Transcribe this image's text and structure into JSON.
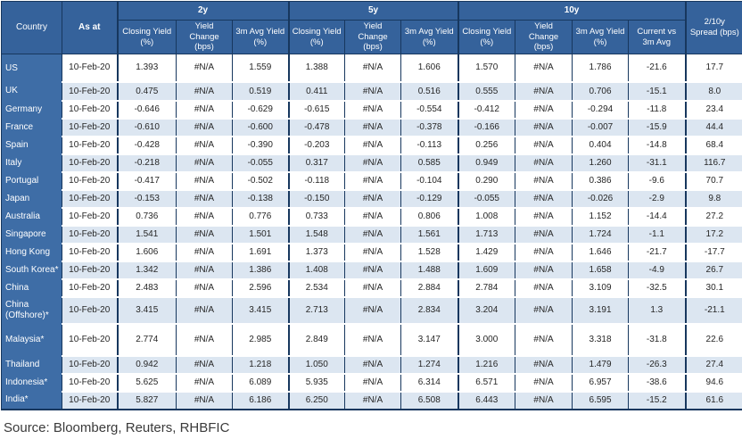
{
  "ui": {
    "header": {
      "country": "Country",
      "as_at": "As at",
      "groups": [
        "2y",
        "5y",
        "10y"
      ],
      "sub": {
        "closing": "Closing Yield\n(%)",
        "change": "Yield\nChange\n(bps)",
        "avg": "3m Avg Yield\n(%)",
        "current_vs": "Current vs\n3m Avg"
      },
      "spread": "2/10y\nSpread (bps)"
    },
    "source": "Source: Bloomberg, Reuters, RHBFIC"
  },
  "colors": {
    "header_bg": "#35629B",
    "country_column_bg": "#3E6DA6",
    "alt_row_bg": "#DCE6F1",
    "row_bg": "#FFFFFF",
    "border_dark": "#17375E",
    "header_text": "#FFFFFF",
    "data_text": "#262626"
  },
  "chart_data": {
    "type": "table",
    "columns": [
      "Country",
      "As at",
      "2y Closing Yield (%)",
      "2y Yield Change (bps)",
      "2y 3m Avg Yield (%)",
      "5y Closing Yield (%)",
      "5y Yield Change (bps)",
      "5y 3m Avg Yield (%)",
      "10y Closing Yield (%)",
      "10y Yield Change (bps)",
      "10y 3m Avg Yield (%)",
      "10y Current vs 3m Avg",
      "2/10y Spread (bps)"
    ],
    "rows": [
      {
        "country": "US",
        "as_at": "10-Feb-20",
        "values": [
          "1.393",
          "#N/A",
          "1.559",
          "1.388",
          "#N/A",
          "1.606",
          "1.570",
          "#N/A",
          "1.786",
          "-21.6",
          "17.7"
        ]
      },
      {
        "country": "UK",
        "as_at": "10-Feb-20",
        "values": [
          "0.475",
          "#N/A",
          "0.519",
          "0.411",
          "#N/A",
          "0.516",
          "0.555",
          "#N/A",
          "0.706",
          "-15.1",
          "8.0"
        ]
      },
      {
        "country": "Germany",
        "as_at": "10-Feb-20",
        "values": [
          "-0.646",
          "#N/A",
          "-0.629",
          "-0.615",
          "#N/A",
          "-0.554",
          "-0.412",
          "#N/A",
          "-0.294",
          "-11.8",
          "23.4"
        ]
      },
      {
        "country": "France",
        "as_at": "10-Feb-20",
        "values": [
          "-0.610",
          "#N/A",
          "-0.600",
          "-0.478",
          "#N/A",
          "-0.378",
          "-0.166",
          "#N/A",
          "-0.007",
          "-15.9",
          "44.4"
        ]
      },
      {
        "country": "Spain",
        "as_at": "10-Feb-20",
        "values": [
          "-0.428",
          "#N/A",
          "-0.390",
          "-0.203",
          "#N/A",
          "-0.113",
          "0.256",
          "#N/A",
          "0.404",
          "-14.8",
          "68.4"
        ]
      },
      {
        "country": "Italy",
        "as_at": "10-Feb-20",
        "values": [
          "-0.218",
          "#N/A",
          "-0.055",
          "0.317",
          "#N/A",
          "0.585",
          "0.949",
          "#N/A",
          "1.260",
          "-31.1",
          "116.7"
        ]
      },
      {
        "country": "Portugal",
        "as_at": "10-Feb-20",
        "values": [
          "-0.417",
          "#N/A",
          "-0.502",
          "-0.118",
          "#N/A",
          "-0.104",
          "0.290",
          "#N/A",
          "0.386",
          "-9.6",
          "70.7"
        ]
      },
      {
        "country": "Japan",
        "as_at": "10-Feb-20",
        "values": [
          "-0.153",
          "#N/A",
          "-0.138",
          "-0.150",
          "#N/A",
          "-0.129",
          "-0.055",
          "#N/A",
          "-0.026",
          "-2.9",
          "9.8"
        ]
      },
      {
        "country": "Australia",
        "as_at": "10-Feb-20",
        "values": [
          "0.736",
          "#N/A",
          "0.776",
          "0.733",
          "#N/A",
          "0.806",
          "1.008",
          "#N/A",
          "1.152",
          "-14.4",
          "27.2"
        ]
      },
      {
        "country": "Singapore",
        "as_at": "10-Feb-20",
        "values": [
          "1.541",
          "#N/A",
          "1.501",
          "1.548",
          "#N/A",
          "1.561",
          "1.713",
          "#N/A",
          "1.724",
          "-1.1",
          "17.2"
        ]
      },
      {
        "country": "Hong Kong",
        "as_at": "10-Feb-20",
        "values": [
          "1.606",
          "#N/A",
          "1.691",
          "1.373",
          "#N/A",
          "1.528",
          "1.429",
          "#N/A",
          "1.646",
          "-21.7",
          "-17.7"
        ]
      },
      {
        "country": "South Korea*",
        "as_at": "10-Feb-20",
        "values": [
          "1.342",
          "#N/A",
          "1.386",
          "1.408",
          "#N/A",
          "1.488",
          "1.609",
          "#N/A",
          "1.658",
          "-4.9",
          "26.7"
        ]
      },
      {
        "country": "China",
        "as_at": "10-Feb-20",
        "values": [
          "2.483",
          "#N/A",
          "2.596",
          "2.534",
          "#N/A",
          "2.884",
          "2.784",
          "#N/A",
          "3.109",
          "-32.5",
          "30.1"
        ]
      },
      {
        "country": "China (Offshore)*",
        "as_at": "10-Feb-20",
        "values": [
          "3.415",
          "#N/A",
          "3.415",
          "2.713",
          "#N/A",
          "2.834",
          "3.204",
          "#N/A",
          "3.191",
          "1.3",
          "-21.1"
        ]
      },
      {
        "country": "Malaysia*",
        "as_at": "10-Feb-20",
        "values": [
          "2.774",
          "#N/A",
          "2.985",
          "2.849",
          "#N/A",
          "3.147",
          "3.000",
          "#N/A",
          "3.318",
          "-31.8",
          "22.6"
        ]
      },
      {
        "country": "Thailand",
        "as_at": "10-Feb-20",
        "values": [
          "0.942",
          "#N/A",
          "1.218",
          "1.050",
          "#N/A",
          "1.274",
          "1.216",
          "#N/A",
          "1.479",
          "-26.3",
          "27.4"
        ]
      },
      {
        "country": "Indonesia*",
        "as_at": "10-Feb-20",
        "values": [
          "5.625",
          "#N/A",
          "6.089",
          "5.935",
          "#N/A",
          "6.314",
          "6.571",
          "#N/A",
          "6.957",
          "-38.6",
          "94.6"
        ]
      },
      {
        "country": "India*",
        "as_at": "10-Feb-20",
        "values": [
          "5.827",
          "#N/A",
          "6.186",
          "6.250",
          "#N/A",
          "6.508",
          "6.443",
          "#N/A",
          "6.595",
          "-15.2",
          "61.6"
        ]
      }
    ]
  }
}
